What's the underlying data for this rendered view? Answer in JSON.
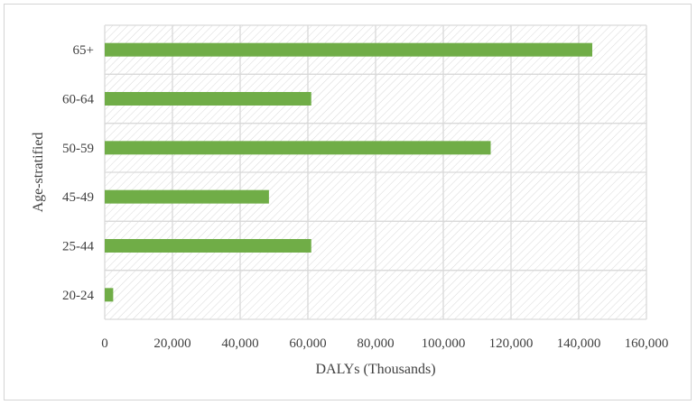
{
  "chart_data": {
    "type": "bar",
    "orientation": "horizontal",
    "title": "",
    "xlabel": "DALYs (Thousands)",
    "ylabel": "Age-stratified",
    "categories": [
      "65+",
      "60-64",
      "50-59",
      "45-49",
      "25-44",
      "20-24"
    ],
    "values": [
      144000,
      61000,
      114000,
      48500,
      61000,
      2500
    ],
    "xlim": [
      0,
      160000
    ],
    "xticks": [
      0,
      20000,
      40000,
      60000,
      80000,
      100000,
      120000,
      140000,
      160000
    ],
    "xtick_labels": [
      "0",
      "20,000",
      "40,000",
      "60,000",
      "80,000",
      "100,000",
      "120,000",
      "140,000",
      "160,000"
    ],
    "grid": true,
    "legend": "none",
    "colors": {
      "bar": "#70ad47",
      "grid": "#d9d9d9",
      "hatch": "#d9d9d9",
      "text": "#404040",
      "border": "#d4d4d4"
    }
  }
}
